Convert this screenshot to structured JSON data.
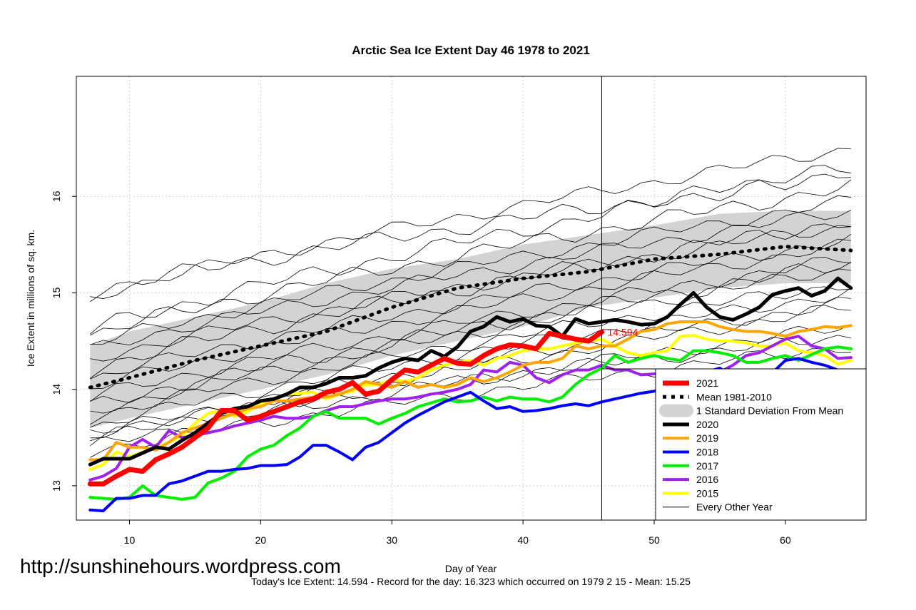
{
  "chart_data": {
    "type": "line",
    "title": "Arctic Sea Ice Extent Day 46 1978 to 2021",
    "xlabel": "Day of Year",
    "ylabel": "Ice Extent in millions of sq. km.",
    "xlim": [
      7,
      65
    ],
    "ylim": [
      12.6,
      17.2
    ],
    "x_ticks": [
      10,
      20,
      30,
      40,
      50,
      60
    ],
    "y_ticks": [
      13,
      14,
      15,
      16
    ],
    "grid": true,
    "legend_position": "bottom-right",
    "vertical_marker_day": 46,
    "annotation": {
      "day": 46,
      "value": 14.594,
      "text": "14.594"
    },
    "footer": "Today's Ice Extent: 14.594  - Record for the day: 16.323 which occurred on 1979 2 15  - Mean: 15.25",
    "website": "http://sunshinehours.wordpress.com",
    "std_band": {
      "name": "1 Standard Deviation From Mean",
      "color": "#d3d3d3",
      "days": [
        7,
        10,
        15,
        20,
        25,
        30,
        35,
        40,
        45,
        50,
        55,
        60,
        65
      ],
      "lower": [
        13.6,
        13.7,
        13.85,
        14.0,
        14.15,
        14.35,
        14.5,
        14.65,
        14.85,
        14.95,
        15.05,
        15.1,
        15.1
      ],
      "upper": [
        14.45,
        14.6,
        14.75,
        14.9,
        15.1,
        15.25,
        15.35,
        15.5,
        15.6,
        15.7,
        15.82,
        15.85,
        15.85
      ]
    },
    "series": [
      {
        "name": "2021",
        "color": "#ff0000",
        "width": 7,
        "days": [
          7,
          8,
          9,
          10,
          11,
          12,
          13,
          14,
          15,
          16,
          17,
          18,
          19,
          20,
          21,
          22,
          23,
          24,
          25,
          26,
          27,
          28,
          29,
          30,
          31,
          32,
          33,
          34,
          35,
          36,
          37,
          38,
          39,
          40,
          41,
          42,
          43,
          44,
          45,
          46
        ],
        "values": [
          13.02,
          13.02,
          13.1,
          13.17,
          13.15,
          13.27,
          13.33,
          13.4,
          13.5,
          13.6,
          13.78,
          13.78,
          13.68,
          13.72,
          13.77,
          13.82,
          13.87,
          13.9,
          13.97,
          14.0,
          14.07,
          13.95,
          13.98,
          14.1,
          14.2,
          14.18,
          14.25,
          14.32,
          14.27,
          14.26,
          14.35,
          14.42,
          14.46,
          14.45,
          14.42,
          14.58,
          14.55,
          14.52,
          14.5,
          14.594
        ]
      },
      {
        "name": "Mean 1981-2010",
        "color": "#000000",
        "width": 5,
        "dash": "2,9",
        "days": [
          7,
          10,
          15,
          20,
          25,
          30,
          35,
          40,
          45,
          50,
          55,
          60,
          65
        ],
        "values": [
          14.02,
          14.12,
          14.3,
          14.45,
          14.6,
          14.85,
          15.05,
          15.15,
          15.22,
          15.35,
          15.4,
          15.48,
          15.44
        ]
      },
      {
        "name": "2020",
        "color": "#000000",
        "width": 5,
        "days": [
          7,
          8,
          9,
          10,
          11,
          12,
          13,
          14,
          15,
          16,
          17,
          18,
          19,
          20,
          21,
          22,
          23,
          24,
          25,
          26,
          27,
          28,
          29,
          30,
          31,
          32,
          33,
          34,
          35,
          36,
          37,
          38,
          39,
          40,
          41,
          42,
          43,
          44,
          45,
          46,
          47,
          48,
          49,
          50,
          51,
          52,
          53,
          54,
          55,
          56,
          57,
          58,
          59,
          60,
          61,
          62,
          63,
          64,
          65
        ],
        "values": [
          13.22,
          13.28,
          13.28,
          13.28,
          13.34,
          13.4,
          13.38,
          13.47,
          13.55,
          13.65,
          13.75,
          13.8,
          13.82,
          13.88,
          13.9,
          13.95,
          14.02,
          14.02,
          14.06,
          14.12,
          14.12,
          14.14,
          14.22,
          14.28,
          14.32,
          14.3,
          14.4,
          14.34,
          14.44,
          14.6,
          14.65,
          14.75,
          14.7,
          14.73,
          14.66,
          14.65,
          14.55,
          14.73,
          14.68,
          14.7,
          14.72,
          14.7,
          14.67,
          14.68,
          14.75,
          14.88,
          15.0,
          14.85,
          14.75,
          14.72,
          14.78,
          14.85,
          14.98,
          15.02,
          15.05,
          14.97,
          15.02,
          15.15,
          15.05
        ]
      },
      {
        "name": "2019",
        "color": "#ffa500",
        "width": 4,
        "days": [
          7,
          8,
          9,
          10,
          11,
          12,
          13,
          14,
          15,
          16,
          17,
          18,
          19,
          20,
          21,
          22,
          23,
          24,
          25,
          26,
          27,
          28,
          29,
          30,
          31,
          32,
          33,
          34,
          35,
          36,
          37,
          38,
          39,
          40,
          41,
          42,
          43,
          44,
          45,
          46,
          47,
          48,
          49,
          50,
          51,
          52,
          53,
          54,
          55,
          56,
          57,
          58,
          59,
          60,
          61,
          62,
          63,
          64,
          65
        ],
        "values": [
          13.27,
          13.27,
          13.45,
          13.4,
          13.4,
          13.37,
          13.45,
          13.55,
          13.6,
          13.65,
          13.7,
          13.75,
          13.8,
          13.82,
          13.88,
          13.88,
          13.9,
          13.92,
          13.92,
          13.95,
          14.0,
          14.08,
          14.05,
          14.02,
          14.08,
          14.02,
          14.05,
          14.02,
          14.05,
          14.12,
          14.08,
          14.12,
          14.18,
          14.25,
          14.28,
          14.28,
          14.32,
          14.45,
          14.42,
          14.45,
          14.45,
          14.52,
          14.6,
          14.62,
          14.68,
          14.7,
          14.7,
          14.7,
          14.65,
          14.62,
          14.6,
          14.6,
          14.58,
          14.55,
          14.6,
          14.62,
          14.65,
          14.64,
          14.66
        ]
      },
      {
        "name": "2018",
        "color": "#0000ff",
        "width": 4,
        "days": [
          7,
          8,
          9,
          10,
          11,
          12,
          13,
          14,
          15,
          16,
          17,
          18,
          19,
          20,
          21,
          22,
          23,
          24,
          25,
          26,
          27,
          28,
          29,
          30,
          31,
          32,
          33,
          34,
          35,
          36,
          37,
          38,
          39,
          40,
          41,
          42,
          43,
          44,
          45,
          46,
          47,
          48,
          49,
          50,
          51,
          52,
          53,
          54,
          55,
          56,
          57,
          58,
          59,
          60,
          61,
          62,
          63,
          64,
          65
        ],
        "values": [
          12.75,
          12.74,
          12.87,
          12.87,
          12.9,
          12.9,
          13.02,
          13.05,
          13.1,
          13.15,
          13.15,
          13.17,
          13.18,
          13.21,
          13.21,
          13.22,
          13.3,
          13.42,
          13.42,
          13.35,
          13.27,
          13.4,
          13.45,
          13.55,
          13.65,
          13.73,
          13.8,
          13.87,
          13.92,
          13.97,
          13.88,
          13.8,
          13.82,
          13.77,
          13.78,
          13.8,
          13.83,
          13.85,
          13.83,
          13.87,
          13.9,
          13.93,
          13.96,
          13.98,
          14.02,
          14.07,
          14.12,
          14.18,
          14.22,
          14.13,
          14.18,
          14.18,
          14.17,
          14.3,
          14.32,
          14.28,
          14.25,
          14.2,
          14.13
        ]
      },
      {
        "name": "2017",
        "color": "#00ee00",
        "width": 4,
        "days": [
          7,
          8,
          9,
          10,
          11,
          12,
          13,
          14,
          15,
          16,
          17,
          18,
          19,
          20,
          21,
          22,
          23,
          24,
          25,
          26,
          27,
          28,
          29,
          30,
          31,
          32,
          33,
          34,
          35,
          36,
          37,
          38,
          39,
          40,
          41,
          42,
          43,
          44,
          45,
          46,
          47,
          48,
          49,
          50,
          51,
          52,
          53,
          54,
          55,
          56,
          57,
          58,
          59,
          60,
          61,
          62,
          63,
          64,
          65
        ],
        "values": [
          12.88,
          12.87,
          12.86,
          12.88,
          13.0,
          12.9,
          12.88,
          12.86,
          12.88,
          13.03,
          13.08,
          13.15,
          13.3,
          13.38,
          13.42,
          13.52,
          13.6,
          13.72,
          13.77,
          13.7,
          13.7,
          13.7,
          13.64,
          13.7,
          13.75,
          13.82,
          13.86,
          13.9,
          13.87,
          13.88,
          13.92,
          13.88,
          13.92,
          13.9,
          13.9,
          13.87,
          13.92,
          14.05,
          14.15,
          14.22,
          14.35,
          14.28,
          14.32,
          14.35,
          14.32,
          14.3,
          14.4,
          14.4,
          14.38,
          14.35,
          14.28,
          14.28,
          14.32,
          14.35,
          14.3,
          14.36,
          14.42,
          14.44,
          14.42
        ]
      },
      {
        "name": "2016",
        "color": "#a020f0",
        "width": 4,
        "days": [
          7,
          8,
          9,
          10,
          11,
          12,
          13,
          14,
          15,
          16,
          17,
          18,
          19,
          20,
          21,
          22,
          23,
          24,
          25,
          26,
          27,
          28,
          29,
          30,
          31,
          32,
          33,
          34,
          35,
          36,
          37,
          38,
          39,
          40,
          41,
          42,
          43,
          44,
          45,
          46,
          47,
          48,
          49,
          50,
          51,
          52,
          53,
          54,
          55,
          56,
          57,
          58,
          59,
          60,
          61,
          62,
          63,
          64,
          65
        ],
        "values": [
          13.06,
          13.1,
          13.18,
          13.4,
          13.48,
          13.4,
          13.57,
          13.5,
          13.52,
          13.55,
          13.58,
          13.62,
          13.65,
          13.68,
          13.72,
          13.7,
          13.7,
          13.72,
          13.78,
          13.82,
          13.82,
          13.85,
          13.88,
          13.9,
          13.9,
          13.92,
          13.95,
          13.97,
          14.0,
          14.05,
          14.2,
          14.18,
          14.28,
          14.25,
          14.12,
          14.07,
          14.15,
          14.2,
          14.2,
          14.25,
          14.2,
          14.2,
          14.15,
          14.16,
          14.18,
          14.2,
          14.2,
          14.16,
          14.18,
          14.25,
          14.35,
          14.38,
          14.45,
          14.52,
          14.55,
          14.45,
          14.42,
          14.32,
          14.33
        ]
      },
      {
        "name": "2015",
        "color": "#ffff00",
        "width": 4,
        "days": [
          7,
          8,
          9,
          10,
          11,
          12,
          13,
          14,
          15,
          16,
          17,
          18,
          19,
          20,
          21,
          22,
          23,
          24,
          25,
          26,
          27,
          28,
          29,
          30,
          31,
          32,
          33,
          34,
          35,
          36,
          37,
          38,
          39,
          40,
          41,
          42,
          43,
          44,
          45,
          46,
          47,
          48,
          49,
          50,
          51,
          52,
          53,
          54,
          55,
          56,
          57,
          58,
          59,
          60,
          61,
          62,
          63,
          64,
          65
        ],
        "values": [
          13.17,
          13.22,
          13.35,
          13.3,
          13.35,
          13.4,
          13.45,
          13.52,
          13.65,
          13.75,
          13.78,
          13.72,
          13.77,
          13.85,
          13.9,
          13.95,
          13.96,
          13.97,
          13.9,
          13.95,
          13.98,
          14.05,
          14.05,
          14.1,
          14.08,
          14.12,
          14.2,
          14.25,
          14.28,
          14.3,
          14.25,
          14.32,
          14.35,
          14.4,
          14.42,
          14.42,
          14.45,
          14.48,
          14.5,
          14.52,
          14.45,
          14.38,
          14.35,
          14.38,
          14.4,
          14.55,
          14.56,
          14.52,
          14.5,
          14.5,
          14.48,
          14.45,
          14.45,
          14.48,
          14.4,
          14.38,
          14.35,
          14.26,
          14.3
        ]
      },
      {
        "name": "Every Other Year",
        "color": "#000000",
        "width": 1
      }
    ],
    "background_years": [
      {
        "start": 14.95,
        "end": 16.5,
        "amp": 0.05
      },
      {
        "start": 15.0,
        "end": 16.25,
        "amp": 0.06
      },
      {
        "start": 14.55,
        "end": 16.1,
        "amp": 0.06
      },
      {
        "start": 14.45,
        "end": 15.95,
        "amp": 0.05
      },
      {
        "start": 14.6,
        "end": 16.3,
        "amp": 0.06
      },
      {
        "start": 14.4,
        "end": 15.85,
        "amp": 0.05
      },
      {
        "start": 14.3,
        "end": 15.7,
        "amp": 0.05
      },
      {
        "start": 14.2,
        "end": 15.75,
        "amp": 0.06
      },
      {
        "start": 14.1,
        "end": 15.55,
        "amp": 0.05
      },
      {
        "start": 14.0,
        "end": 15.5,
        "amp": 0.05
      },
      {
        "start": 13.9,
        "end": 15.35,
        "amp": 0.05
      },
      {
        "start": 13.8,
        "end": 15.3,
        "amp": 0.06
      },
      {
        "start": 13.75,
        "end": 15.25,
        "amp": 0.05
      },
      {
        "start": 13.7,
        "end": 15.1,
        "amp": 0.05
      },
      {
        "start": 13.6,
        "end": 15.0,
        "amp": 0.05
      },
      {
        "start": 13.5,
        "end": 14.9,
        "amp": 0.05
      },
      {
        "start": 13.45,
        "end": 14.85,
        "amp": 0.05
      },
      {
        "start": 13.4,
        "end": 14.65,
        "amp": 0.05
      },
      {
        "start": 13.55,
        "end": 14.55,
        "amp": 0.05
      },
      {
        "start": 13.35,
        "end": 14.45,
        "amp": 0.05
      }
    ]
  }
}
